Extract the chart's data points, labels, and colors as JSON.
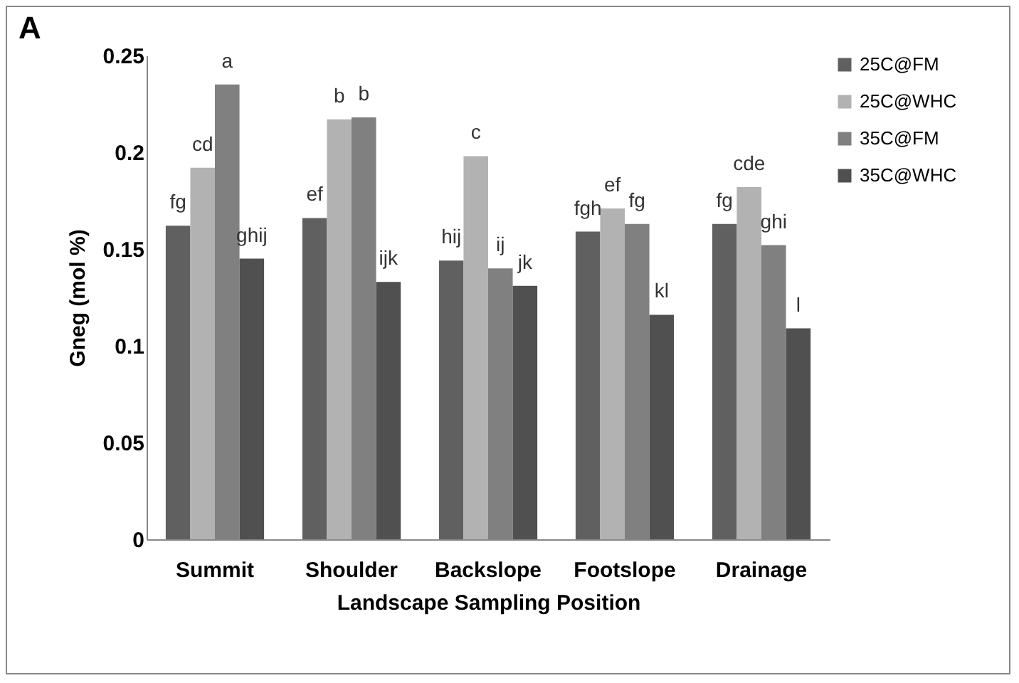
{
  "chart_data": {
    "type": "bar",
    "title": "A",
    "xlabel": "Landscape Sampling Position",
    "ylabel": "Gneg (mol %)",
    "categories": [
      "Summit",
      "Shoulder",
      "Backslope",
      "Footslope",
      "Drainage"
    ],
    "series": [
      {
        "name": "25C@FM",
        "color": "#606060",
        "values": [
          0.162,
          0.166,
          0.144,
          0.159,
          0.163
        ],
        "value_labels": [
          "fg",
          "ef",
          "hij",
          "fgh",
          "fg"
        ]
      },
      {
        "name": "25C@WHC",
        "color": "#b2b2b2",
        "values": [
          0.192,
          0.217,
          0.198,
          0.171,
          0.182
        ],
        "value_labels": [
          "cd",
          "b",
          "c",
          "ef",
          "cde"
        ]
      },
      {
        "name": "35C@FM",
        "color": "#808080",
        "values": [
          0.235,
          0.218,
          0.14,
          0.163,
          0.152
        ],
        "value_labels": [
          "a",
          "b",
          "ij",
          "fg",
          "ghi"
        ]
      },
      {
        "name": "35C@WHC",
        "color": "#505050",
        "values": [
          0.145,
          0.133,
          0.131,
          0.116,
          0.109
        ],
        "value_labels": [
          "ghij",
          "ijk",
          "jk",
          "kl",
          "l"
        ]
      }
    ],
    "ylim": [
      0,
      0.25
    ],
    "yticks": [
      0,
      0.05,
      0.1,
      0.15,
      0.2,
      0.25
    ],
    "grid": false,
    "legend": "top right"
  }
}
